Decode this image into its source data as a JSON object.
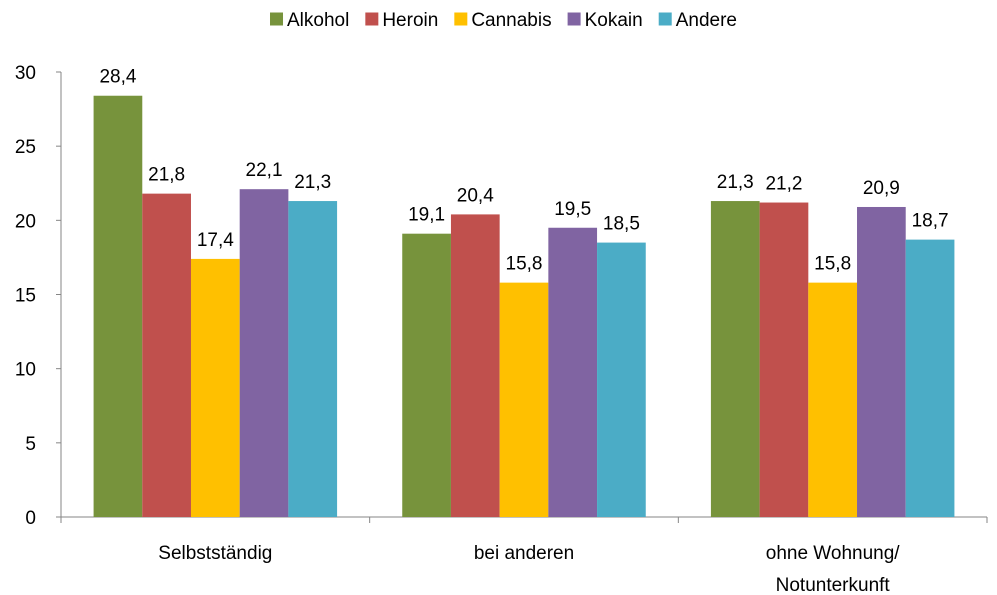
{
  "chart_data": {
    "type": "bar",
    "categories": [
      "Selbstständig",
      "bei anderen",
      "ohne Wohnung/ Notunterkunft"
    ],
    "category_lines": [
      [
        "Selbstständig"
      ],
      [
        "bei anderen"
      ],
      [
        "ohne Wohnung/",
        "Notunterkunft"
      ]
    ],
    "series": [
      {
        "name": "Alkohol",
        "color": "#77933C",
        "values": [
          28.4,
          19.1,
          21.3
        ],
        "labels": [
          "28,4",
          "19,1",
          "21,3"
        ]
      },
      {
        "name": "Heroin",
        "color": "#C0504D",
        "values": [
          21.8,
          20.4,
          21.2
        ],
        "labels": [
          "21,8",
          "20,4",
          "21,2"
        ]
      },
      {
        "name": "Cannabis",
        "color": "#FFC000",
        "values": [
          17.4,
          15.8,
          15.8
        ],
        "labels": [
          "17,4",
          "15,8",
          "15,8"
        ]
      },
      {
        "name": "Kokain",
        "color": "#8064A2",
        "values": [
          22.1,
          19.5,
          20.9
        ],
        "labels": [
          "22,1",
          "19,5",
          "20,9"
        ]
      },
      {
        "name": "Andere",
        "color": "#4BACC6",
        "values": [
          21.3,
          18.5,
          18.7
        ],
        "labels": [
          "21,3",
          "18,5",
          "18,7"
        ]
      }
    ],
    "ylim": [
      0,
      30
    ],
    "yticks": [
      "0",
      "5",
      "10",
      "15",
      "20",
      "25",
      "30"
    ],
    "grid": false,
    "legend_position": "top"
  }
}
